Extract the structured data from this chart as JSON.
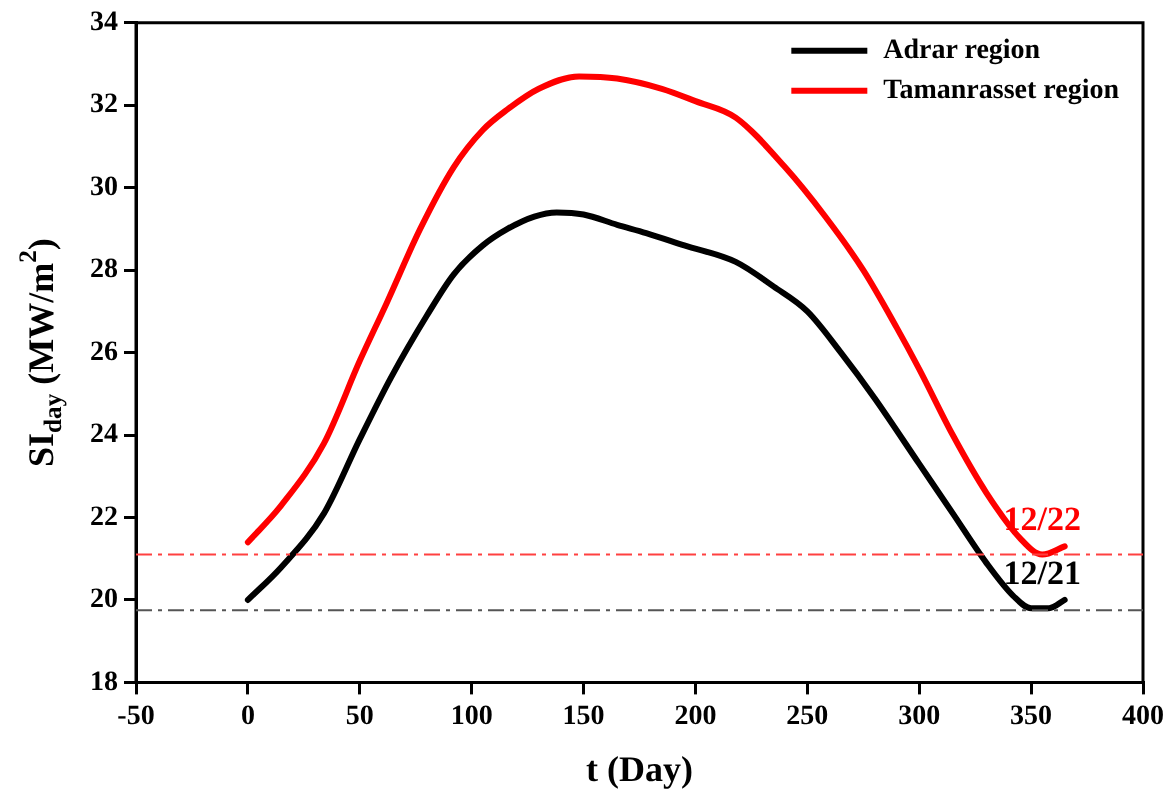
{
  "chart_data": {
    "type": "line",
    "xlabel": "t (Day)",
    "ylabel": "SI$_{day}$ (MW/m$^{2}$)",
    "xlim": [
      -50,
      400
    ],
    "xticks": [
      -50,
      0,
      50,
      100,
      150,
      200,
      250,
      300,
      350,
      400
    ],
    "ylim": [
      18,
      34
    ],
    "yticks": [
      18,
      20,
      22,
      24,
      26,
      28,
      30,
      32,
      34
    ],
    "grid": false,
    "legend": "top right",
    "marker": "none",
    "line_style": "solid",
    "series": [
      {
        "name": "Adrar region",
        "color": "#000000",
        "x": [
          0,
          15,
          34,
          50,
          64,
          80,
          92,
          105,
          116,
          128,
          138,
          150,
          165,
          178,
          195,
          218,
          235,
          250,
          265,
          280,
          300,
          315,
          330,
          342,
          350,
          358,
          365
        ],
        "values": [
          20.0,
          20.8,
          22.1,
          23.9,
          25.4,
          26.9,
          27.9,
          28.6,
          29.0,
          29.3,
          29.4,
          29.35,
          29.1,
          28.9,
          28.6,
          28.2,
          27.6,
          27.0,
          26.0,
          24.9,
          23.3,
          22.1,
          20.9,
          20.1,
          19.8,
          19.8,
          20.0
        ]
      },
      {
        "name": "Tamanrasset region",
        "color": "#ff0000",
        "x": [
          0,
          15,
          34,
          50,
          62,
          77,
          92,
          105,
          116,
          130,
          148,
          165,
          185,
          200,
          218,
          240,
          258,
          275,
          290,
          300,
          315,
          330,
          345,
          355,
          365
        ],
        "values": [
          21.4,
          22.3,
          23.8,
          25.8,
          27.2,
          29.0,
          30.5,
          31.4,
          31.9,
          32.4,
          32.7,
          32.65,
          32.4,
          32.1,
          31.7,
          30.5,
          29.3,
          28.0,
          26.6,
          25.6,
          24.0,
          22.6,
          21.5,
          21.1,
          21.3
        ]
      }
    ],
    "annotations": [
      {
        "text": "12/22",
        "x": 355,
        "y": 21.1
      },
      {
        "text": "12/21",
        "x": 355,
        "y": 19.8
      }
    ],
    "ref_lines": [
      {
        "axis": "y",
        "value": 21.1,
        "color": "#ff4040",
        "line_style": "dashed"
      },
      {
        "axis": "y",
        "value": 19.75,
        "color": "#555555",
        "line_style": "dashed"
      }
    ]
  }
}
